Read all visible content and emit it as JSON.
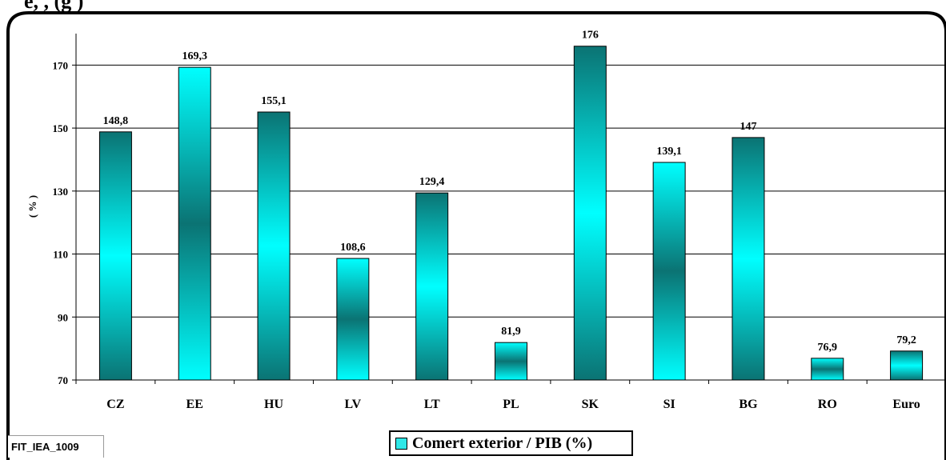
{
  "header": {
    "text": "e, , (g )"
  },
  "source_label": "FIT_IEA_1009",
  "legend_label": "Comert exterior / PIB (%)",
  "colors": {
    "frame": "#000000",
    "bar_dark": "#0b7373",
    "bar_light": "#00ffff",
    "grid": "#000000"
  },
  "chart_data": {
    "type": "bar",
    "categories": [
      "CZ",
      "EE",
      "HU",
      "LV",
      "LT",
      "PL",
      "SK",
      "SI",
      "BG",
      "RO",
      "Euro"
    ],
    "series": [
      {
        "name": "Comert exterior / PIB (%)",
        "values": [
          148.8,
          169.3,
          155.1,
          108.6,
          129.4,
          81.9,
          176,
          139.1,
          147,
          76.9,
          79.2
        ],
        "labels": [
          "148,8",
          "169,3",
          "155,1",
          "108,6",
          "129,4",
          "81,9",
          "176",
          "139,1",
          "147",
          "76,9",
          "79,2"
        ]
      }
    ],
    "ylabel": "( % )",
    "ylim": [
      70,
      180
    ],
    "yticks": [
      70,
      90,
      110,
      130,
      150,
      170
    ],
    "grid": true,
    "legend_position": "bottom-center"
  }
}
